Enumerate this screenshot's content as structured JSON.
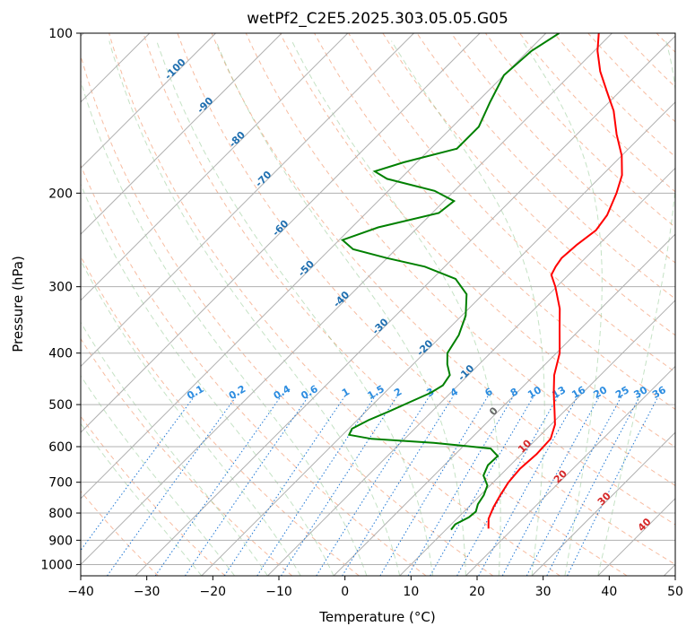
{
  "chart_data": {
    "type": "line",
    "subtype": "skew-t log-p diagram",
    "title": "wetPf2_C2E5.2025.303.05.05.G05",
    "xlabel": "Temperature (°C)",
    "ylabel": "Pressure (hPa)",
    "xlim": [
      -40,
      50
    ],
    "ylim": [
      1050,
      100
    ],
    "yscale": "log",
    "grid": true,
    "x_ticks": [
      -40,
      -30,
      -20,
      -10,
      0,
      10,
      20,
      30,
      40,
      50
    ],
    "y_ticks": [
      100,
      200,
      300,
      400,
      500,
      600,
      700,
      800,
      900,
      1000
    ],
    "mixing_ratio_labels": [
      "0.1",
      "0.2",
      "0.4",
      "0.6",
      "1",
      "1.5",
      "2",
      "3",
      "4",
      "6",
      "8",
      "10",
      "13",
      "16",
      "20",
      "25",
      "30",
      "36"
    ],
    "mixing_ratio_values": [
      0.1,
      0.2,
      0.4,
      0.6,
      1,
      1.5,
      2,
      3,
      4,
      6,
      8,
      10,
      13,
      16,
      20,
      25,
      30,
      36
    ],
    "upper_isotherm_labels": [
      "-100",
      "-90",
      "-80",
      "-70",
      "-60",
      "-50",
      "-40",
      "-30",
      "-20",
      "-10"
    ],
    "upper_isotherm_values": [
      -100,
      -90,
      -80,
      -70,
      -60,
      -50,
      -40,
      -30,
      -20,
      -10
    ],
    "lower_isotherm_labels": [
      "0",
      "10",
      "20",
      "30",
      "40"
    ],
    "lower_isotherm_values": [
      0,
      10,
      20,
      30,
      40
    ],
    "series": [
      {
        "name": "temperature",
        "color": "#ff0000",
        "points": [
          {
            "p": 856,
            "t": 16.3
          },
          {
            "p": 820,
            "t": 14.8
          },
          {
            "p": 780,
            "t": 13.8
          },
          {
            "p": 740,
            "t": 13.0
          },
          {
            "p": 700,
            "t": 12.3
          },
          {
            "p": 660,
            "t": 12.0
          },
          {
            "p": 620,
            "t": 12.3
          },
          {
            "p": 580,
            "t": 12.1
          },
          {
            "p": 545,
            "t": 10.6
          },
          {
            "p": 510,
            "t": 8.2
          },
          {
            "p": 475,
            "t": 5.6
          },
          {
            "p": 440,
            "t": 3.0
          },
          {
            "p": 400,
            "t": 0.5
          },
          {
            "p": 360,
            "t": -3.2
          },
          {
            "p": 330,
            "t": -6.2
          },
          {
            "p": 300,
            "t": -10.2
          },
          {
            "p": 285,
            "t": -12.6
          },
          {
            "p": 275,
            "t": -13.2
          },
          {
            "p": 265,
            "t": -13.6
          },
          {
            "p": 250,
            "t": -13.3
          },
          {
            "p": 235,
            "t": -12.6
          },
          {
            "p": 220,
            "t": -13.2
          },
          {
            "p": 200,
            "t": -15.1
          },
          {
            "p": 185,
            "t": -17.0
          },
          {
            "p": 170,
            "t": -20.0
          },
          {
            "p": 155,
            "t": -24.0
          },
          {
            "p": 140,
            "t": -28.0
          },
          {
            "p": 130,
            "t": -31.5
          },
          {
            "p": 118,
            "t": -36.0
          },
          {
            "p": 108,
            "t": -39.5
          },
          {
            "p": 100,
            "t": -42.0
          }
        ]
      },
      {
        "name": "dewpoint",
        "color": "#008000",
        "points": [
          {
            "p": 860,
            "t": 10.8
          },
          {
            "p": 840,
            "t": 10.6
          },
          {
            "p": 815,
            "t": 11.6
          },
          {
            "p": 795,
            "t": 11.8
          },
          {
            "p": 770,
            "t": 11.0
          },
          {
            "p": 740,
            "t": 10.5
          },
          {
            "p": 710,
            "t": 9.6
          },
          {
            "p": 680,
            "t": 7.5
          },
          {
            "p": 650,
            "t": 6.6
          },
          {
            "p": 625,
            "t": 6.7
          },
          {
            "p": 605,
            "t": 4.5
          },
          {
            "p": 590,
            "t": -5.0
          },
          {
            "p": 580,
            "t": -15.0
          },
          {
            "p": 570,
            "t": -19.0
          },
          {
            "p": 555,
            "t": -19.5
          },
          {
            "p": 535,
            "t": -18.3
          },
          {
            "p": 515,
            "t": -16.5
          },
          {
            "p": 495,
            "t": -14.8
          },
          {
            "p": 475,
            "t": -13.0
          },
          {
            "p": 460,
            "t": -12.3
          },
          {
            "p": 440,
            "t": -12.8
          },
          {
            "p": 420,
            "t": -14.8
          },
          {
            "p": 400,
            "t": -16.5
          },
          {
            "p": 370,
            "t": -17.5
          },
          {
            "p": 340,
            "t": -19.4
          },
          {
            "p": 310,
            "t": -22.5
          },
          {
            "p": 290,
            "t": -26.5
          },
          {
            "p": 275,
            "t": -33.0
          },
          {
            "p": 265,
            "t": -40.0
          },
          {
            "p": 255,
            "t": -46.5
          },
          {
            "p": 245,
            "t": -49.5
          },
          {
            "p": 232,
            "t": -46.0
          },
          {
            "p": 218,
            "t": -39.0
          },
          {
            "p": 207,
            "t": -38.5
          },
          {
            "p": 198,
            "t": -43.0
          },
          {
            "p": 188,
            "t": -52.0
          },
          {
            "p": 182,
            "t": -55.0
          },
          {
            "p": 175,
            "t": -52.0
          },
          {
            "p": 165,
            "t": -46.0
          },
          {
            "p": 150,
            "t": -46.0
          },
          {
            "p": 135,
            "t": -48.0
          },
          {
            "p": 120,
            "t": -50.0
          },
          {
            "p": 108,
            "t": -49.5
          },
          {
            "p": 100,
            "t": -48.0
          }
        ]
      }
    ]
  }
}
